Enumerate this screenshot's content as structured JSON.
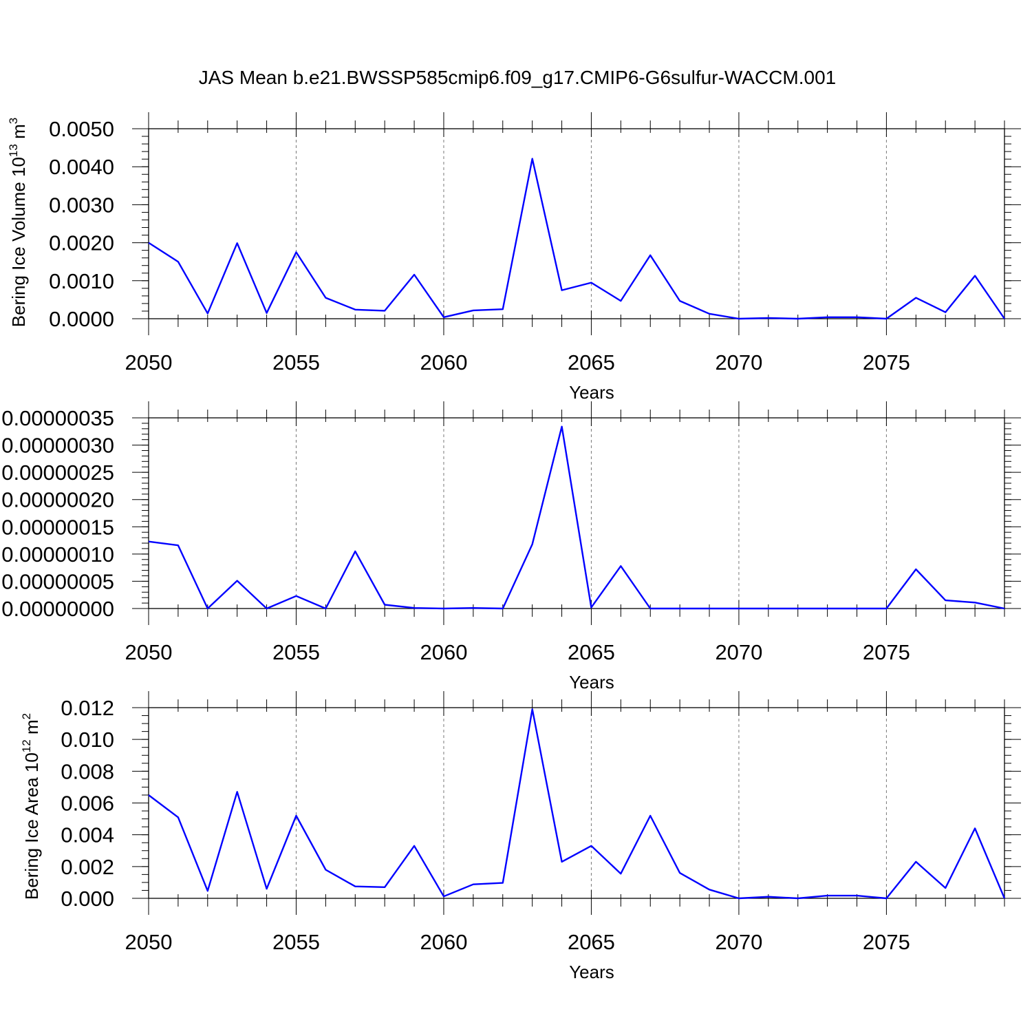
{
  "figure": {
    "title": "JAS Mean b.e21.BWSSP585cmip6.f09_g17.CMIP6-G6sulfur-WACCM.001"
  },
  "chart_data": [
    {
      "type": "line",
      "xlabel": "Years",
      "ylabel_parts": [
        "Bering Ice Volume 10",
        "13",
        " m",
        "3"
      ],
      "xlim": [
        2050,
        2079
      ],
      "ylim": [
        0,
        0.005
      ],
      "x_ticks": [
        2050,
        2055,
        2060,
        2065,
        2070,
        2075
      ],
      "x_tick_labels": [
        "2050",
        "2055",
        "2060",
        "2065",
        "2070",
        "2075"
      ],
      "y_ticks": [
        0,
        0.001,
        0.002,
        0.003,
        0.004,
        0.005
      ],
      "y_tick_labels": [
        "0.0000",
        "0.0010",
        "0.0020",
        "0.0030",
        "0.0040",
        "0.0050"
      ],
      "y_minor_step": 0.0002,
      "x_grid": "dashed at major x ticks",
      "line_color": "#0000ff",
      "x": [
        2050,
        2051,
        2052,
        2053,
        2054,
        2055,
        2056,
        2057,
        2058,
        2059,
        2060,
        2061,
        2062,
        2063,
        2064,
        2065,
        2066,
        2067,
        2068,
        2069,
        2070,
        2071,
        2072,
        2073,
        2074,
        2075,
        2076,
        2077,
        2078,
        2079
      ],
      "values": [
        0.002,
        0.0015,
        0.00014,
        0.00199,
        0.00015,
        0.00175,
        0.00055,
        0.00024,
        0.00021,
        0.00116,
        4e-05,
        0.00022,
        0.00025,
        0.00421,
        0.00075,
        0.00095,
        0.00047,
        0.00167,
        0.00047,
        0.00013,
        0.0,
        2e-05,
        0.0,
        4e-05,
        4e-05,
        0.0,
        0.00055,
        0.00017,
        0.00113,
        0.0
      ]
    },
    {
      "type": "line",
      "xlabel": "Years",
      "ylabel_parts": [],
      "xlim": [
        2050,
        2079
      ],
      "ylim": [
        0,
        3.5e-07
      ],
      "x_ticks": [
        2050,
        2055,
        2060,
        2065,
        2070,
        2075
      ],
      "x_tick_labels": [
        "2050",
        "2055",
        "2060",
        "2065",
        "2070",
        "2075"
      ],
      "y_ticks": [
        0,
        5e-08,
        1e-07,
        1.5e-07,
        2e-07,
        2.5e-07,
        3e-07,
        3.5e-07
      ],
      "y_tick_labels": [
        "0.00000000",
        "0.00000005",
        "0.00000010",
        "0.00000015",
        "0.00000020",
        "0.00000025",
        "0.00000030",
        "0.00000035"
      ],
      "y_minor_step": 1e-08,
      "x_grid": "dashed at major x ticks",
      "line_color": "#0000ff",
      "x": [
        2050,
        2051,
        2052,
        2053,
        2054,
        2055,
        2056,
        2057,
        2058,
        2059,
        2060,
        2061,
        2062,
        2063,
        2064,
        2065,
        2066,
        2067,
        2068,
        2069,
        2070,
        2071,
        2072,
        2073,
        2074,
        2075,
        2076,
        2077,
        2078,
        2079
      ],
      "values": [
        1.23e-07,
        1.16e-07,
        0.0,
        5.1e-08,
        0.0,
        2.3e-08,
        0.0,
        1.05e-07,
        7e-09,
        1e-09,
        0.0,
        1e-09,
        0.0,
        1.18e-07,
        3.34e-07,
        2e-09,
        7.8e-08,
        0.0,
        0.0,
        0.0,
        0.0,
        0.0,
        0.0,
        0.0,
        0.0,
        0.0,
        7.2e-08,
        1.5e-08,
        1.1e-08,
        0.0
      ]
    },
    {
      "type": "line",
      "xlabel": "Years",
      "ylabel_parts": [
        "Bering Ice Area 10",
        "12",
        " m",
        "2"
      ],
      "xlim": [
        2050,
        2079
      ],
      "ylim": [
        0,
        0.012
      ],
      "x_ticks": [
        2050,
        2055,
        2060,
        2065,
        2070,
        2075
      ],
      "x_tick_labels": [
        "2050",
        "2055",
        "2060",
        "2065",
        "2070",
        "2075"
      ],
      "y_ticks": [
        0,
        0.002,
        0.004,
        0.006,
        0.008,
        0.01,
        0.012
      ],
      "y_tick_labels": [
        "0.000",
        "0.002",
        "0.004",
        "0.006",
        "0.008",
        "0.010",
        "0.012"
      ],
      "y_minor_step": 0.0005,
      "x_grid": "dashed at major x ticks",
      "line_color": "#0000ff",
      "x": [
        2050,
        2051,
        2052,
        2053,
        2054,
        2055,
        2056,
        2057,
        2058,
        2059,
        2060,
        2061,
        2062,
        2063,
        2064,
        2065,
        2066,
        2067,
        2068,
        2069,
        2070,
        2071,
        2072,
        2073,
        2074,
        2075,
        2076,
        2077,
        2078,
        2079
      ],
      "values": [
        0.0065,
        0.0051,
        0.00047,
        0.0067,
        0.0006,
        0.0052,
        0.0018,
        0.00075,
        0.0007,
        0.0033,
        0.00012,
        0.00088,
        0.00097,
        0.0119,
        0.0023,
        0.0033,
        0.00155,
        0.0052,
        0.0016,
        0.00055,
        0.0,
        0.0001,
        0.0,
        0.00017,
        0.00017,
        0.0,
        0.0023,
        0.00065,
        0.0044,
        0.0
      ]
    }
  ]
}
